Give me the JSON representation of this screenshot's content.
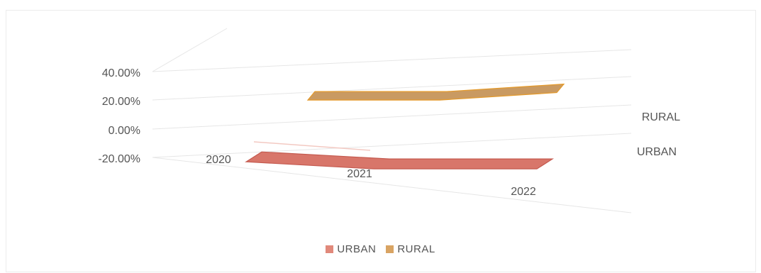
{
  "chart_data": {
    "type": "area",
    "categories": [
      "2020",
      "2021",
      "2022"
    ],
    "series": [
      {
        "name": "URBAN",
        "values": [
          -0.1,
          -0.12,
          -0.12
        ],
        "color": "#d8766a"
      },
      {
        "name": "RURAL",
        "values": [
          0.29,
          0.29,
          0.36
        ],
        "color": "#c99a62"
      }
    ],
    "y_ticks": [
      "40.00%",
      "20.00%",
      "0.00%",
      "-20.00%"
    ],
    "ylim": [
      -0.2,
      0.4
    ],
    "depth_labels": [
      "RURAL",
      "URBAN"
    ],
    "legend": {
      "position": "bottom",
      "items": [
        "URBAN",
        "RURAL"
      ]
    },
    "grid": true
  }
}
